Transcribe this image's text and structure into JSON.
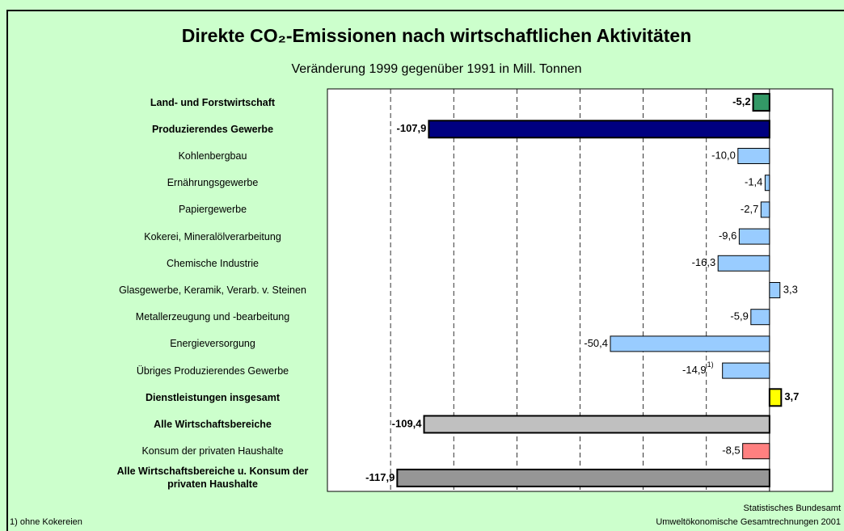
{
  "chart_data": {
    "type": "bar",
    "orientation": "horizontal",
    "title": "Direkte CO₂-Emissionen nach wirtschaftlichen Aktivitäten",
    "subtitle": "Veränderung 1999 gegenüber 1991 in Mill. Tonnen",
    "categories": [
      "Land- und Forstwirtschaft",
      "Produzierendes Gewerbe",
      "Kohlenbergbau",
      "Ernährungsgewerbe",
      "Papiergewerbe",
      "Kokerei, Mineralölverarbeitung",
      "Chemische Industrie",
      "Glasgewerbe, Keramik, Verarb. v. Steinen",
      "Metallerzeugung und -bearbeitung",
      "Energieversorgung",
      "Übriges Produzierendes Gewerbe",
      "Dienstleistungen insgesamt",
      "Alle Wirtschaftsbereiche",
      "Konsum der privaten Haushalte",
      "Alle Wirtschaftsbereiche u. Konsum der privaten Haushalte"
    ],
    "values": [
      -5.2,
      -107.9,
      -10.0,
      -1.4,
      -2.7,
      -9.6,
      -16.3,
      3.3,
      -5.9,
      -50.4,
      -14.9,
      3.7,
      -109.4,
      -8.5,
      -117.9
    ],
    "value_labels": [
      "-5,2",
      "-107,9",
      "-10,0",
      "-1,4",
      "-2,7",
      "-9,6",
      "-16,3",
      "3,3",
      "-5,9",
      "-50,4",
      "-14,9",
      "3,7",
      "-109,4",
      "-8,5",
      "-117,9"
    ],
    "colors": [
      "#339966",
      "#000080",
      "#99ccff",
      "#99ccff",
      "#99ccff",
      "#99ccff",
      "#99ccff",
      "#99ccff",
      "#99ccff",
      "#99ccff",
      "#99ccff",
      "#ffff00",
      "#c0c0c0",
      "#ff8080",
      "#969696"
    ],
    "bold": [
      true,
      true,
      false,
      false,
      false,
      false,
      false,
      false,
      false,
      false,
      false,
      true,
      true,
      false,
      true
    ],
    "value_marker": "1)",
    "xlim": [
      -140,
      20
    ],
    "xticks": [
      -120,
      -100,
      -80,
      -60,
      -40,
      -20
    ],
    "grid": true,
    "footnote": "1) ohne Kokereien",
    "source": [
      "Statistisches Bundesamt",
      "Umweltökonomische Gesamtrechnungen 2001"
    ]
  }
}
